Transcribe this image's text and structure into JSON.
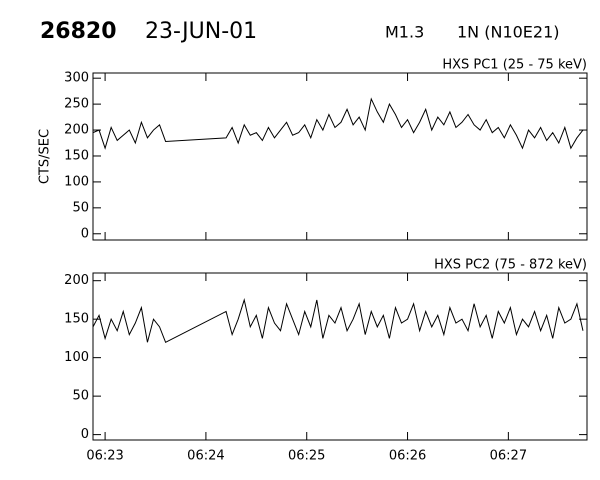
{
  "header": {
    "id": "26820",
    "date": "23-JUN-01",
    "class": "M1.3",
    "location": "1N (N10E21)"
  },
  "chart_data": [
    {
      "type": "line",
      "title": "HXS PC1 (25 - 75 keV)",
      "ylabel": "CTS/SEC",
      "x": [
        22.88,
        22.94,
        23.0,
        23.06,
        23.12,
        23.18,
        23.24,
        23.3,
        23.36,
        23.42,
        23.48,
        23.54,
        23.6,
        24.2,
        24.26,
        24.32,
        24.38,
        24.44,
        24.5,
        24.56,
        24.62,
        24.68,
        24.74,
        24.8,
        24.86,
        24.92,
        24.98,
        25.04,
        25.1,
        25.16,
        25.22,
        25.28,
        25.34,
        25.4,
        25.46,
        25.52,
        25.58,
        25.64,
        25.7,
        25.76,
        25.82,
        25.88,
        25.94,
        26.0,
        26.06,
        26.12,
        26.18,
        26.24,
        26.3,
        26.36,
        26.42,
        26.48,
        26.54,
        26.6,
        26.66,
        26.72,
        26.78,
        26.84,
        26.9,
        26.96,
        27.02,
        27.08,
        27.14,
        27.2,
        27.26,
        27.32,
        27.38,
        27.44,
        27.5,
        27.56,
        27.62,
        27.68,
        27.74
      ],
      "series": [
        {
          "color": "#000000",
          "values": [
            195,
            200,
            165,
            205,
            180,
            190,
            200,
            175,
            215,
            185,
            200,
            210,
            178,
            185,
            205,
            175,
            210,
            190,
            195,
            180,
            205,
            185,
            200,
            215,
            190,
            195,
            210,
            185,
            220,
            200,
            230,
            205,
            215,
            240,
            210,
            225,
            200,
            260,
            235,
            215,
            250,
            230,
            205,
            220,
            195,
            215,
            240,
            200,
            225,
            210,
            235,
            205,
            215,
            230,
            210,
            200,
            220,
            195,
            205,
            185,
            210,
            190,
            165,
            200,
            185,
            205,
            180,
            195,
            175,
            205,
            165,
            185,
            200
          ]
        }
      ],
      "xlim": [
        22.88,
        27.78
      ],
      "xticks": [
        23,
        24,
        25,
        26,
        27
      ],
      "ylim": [
        -12,
        310
      ],
      "yticks": [
        0,
        50,
        100,
        150,
        200,
        250,
        300
      ]
    },
    {
      "type": "line",
      "title": "HXS PC2 (75 - 872 keV)",
      "x": [
        22.88,
        22.94,
        23.0,
        23.06,
        23.12,
        23.18,
        23.24,
        23.3,
        23.36,
        23.42,
        23.48,
        23.54,
        23.6,
        24.2,
        24.26,
        24.32,
        24.38,
        24.44,
        24.5,
        24.56,
        24.62,
        24.68,
        24.74,
        24.8,
        24.86,
        24.92,
        24.98,
        25.04,
        25.1,
        25.16,
        25.22,
        25.28,
        25.34,
        25.4,
        25.46,
        25.52,
        25.58,
        25.64,
        25.7,
        25.76,
        25.82,
        25.88,
        25.94,
        26.0,
        26.06,
        26.12,
        26.18,
        26.24,
        26.3,
        26.36,
        26.42,
        26.48,
        26.54,
        26.6,
        26.66,
        26.72,
        26.78,
        26.84,
        26.9,
        26.96,
        27.02,
        27.08,
        27.14,
        27.2,
        27.26,
        27.32,
        27.38,
        27.44,
        27.5,
        27.56,
        27.62,
        27.68,
        27.74
      ],
      "series": [
        {
          "color": "#000000",
          "values": [
            140,
            155,
            125,
            150,
            135,
            160,
            130,
            145,
            165,
            120,
            150,
            140,
            120,
            160,
            130,
            150,
            175,
            140,
            155,
            125,
            165,
            145,
            135,
            170,
            150,
            130,
            160,
            140,
            175,
            125,
            155,
            145,
            165,
            135,
            150,
            170,
            130,
            160,
            140,
            155,
            125,
            165,
            145,
            150,
            170,
            135,
            160,
            140,
            155,
            130,
            165,
            145,
            150,
            135,
            170,
            140,
            155,
            125,
            160,
            145,
            165,
            130,
            150,
            140,
            160,
            135,
            155,
            125,
            165,
            145,
            150,
            170,
            135
          ]
        }
      ],
      "xlim": [
        22.88,
        27.78
      ],
      "xticks": [
        {
          "value": 23,
          "label": "06:23"
        },
        {
          "value": 24,
          "label": "06:24"
        },
        {
          "value": 25,
          "label": "06:25"
        },
        {
          "value": 26,
          "label": "06:26"
        },
        {
          "value": 27,
          "label": "06:27"
        }
      ],
      "ylim": [
        -7,
        210
      ],
      "yticks": [
        0,
        50,
        100,
        150,
        200
      ]
    }
  ]
}
